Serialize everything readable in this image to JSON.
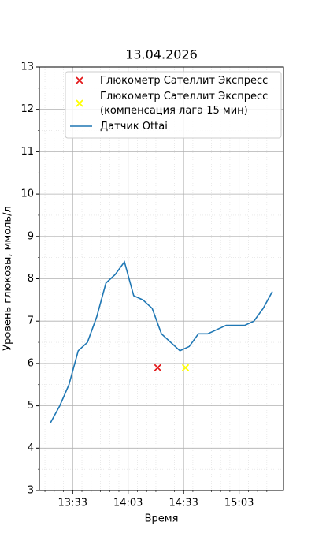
{
  "chart_data": {
    "type": "line",
    "title": "13.04.2026",
    "xlabel": "Время",
    "ylabel": "Уровень глюкозы, ммоль/л",
    "xlim": [
      "13:15",
      "15:27"
    ],
    "xticks": [
      "13:33",
      "14:03",
      "14:33",
      "15:03"
    ],
    "xminorticks": [
      "13:18",
      "13:23",
      "13:28",
      "13:38",
      "13:43",
      "13:48",
      "13:53",
      "13:58",
      "14:08",
      "14:13",
      "14:18",
      "14:23",
      "14:28",
      "14:38",
      "14:43",
      "14:48",
      "14:53",
      "14:58",
      "15:08",
      "15:13",
      "15:18",
      "15:23"
    ],
    "ylim": [
      3,
      13
    ],
    "yticks": [
      3,
      4,
      5,
      6,
      7,
      8,
      9,
      10,
      11,
      12,
      13
    ],
    "yminorticks": [
      3.5,
      4.5,
      5.5,
      6.5,
      7.5,
      8.5,
      9.5,
      10.5,
      11.5,
      12.5
    ],
    "grid": true,
    "legend": "upper right",
    "series": [
      {
        "name": "Глюкометр Сателлит Экспресс",
        "type": "scatter",
        "marker": "x",
        "color": "#e31a1c",
        "x": [
          "14:19"
        ],
        "values": [
          5.9
        ]
      },
      {
        "name": "Глюкометр Сателлит Экспресс\n(компенсация лага 15 мин)",
        "type": "scatter",
        "marker": "x",
        "color": "#ffff00",
        "x": [
          "14:34"
        ],
        "values": [
          5.9
        ]
      },
      {
        "name": "Датчик Ottai",
        "type": "line",
        "color": "#1f77b4",
        "x": [
          "13:21",
          "13:26",
          "13:31",
          "13:36",
          "13:41",
          "13:46",
          "13:51",
          "13:56",
          "14:01",
          "14:06",
          "14:11",
          "14:16",
          "14:21",
          "14:26",
          "14:31",
          "14:36",
          "14:41",
          "14:46",
          "14:51",
          "14:56",
          "15:01",
          "15:06",
          "15:11",
          "15:16",
          "15:21"
        ],
        "values": [
          4.6,
          5.0,
          5.5,
          6.3,
          6.5,
          7.1,
          7.9,
          8.1,
          8.4,
          7.6,
          7.5,
          7.3,
          6.7,
          6.5,
          6.3,
          6.4,
          6.7,
          6.7,
          6.8,
          6.9,
          6.9,
          6.9,
          7.0,
          7.3,
          7.7
        ]
      }
    ]
  }
}
